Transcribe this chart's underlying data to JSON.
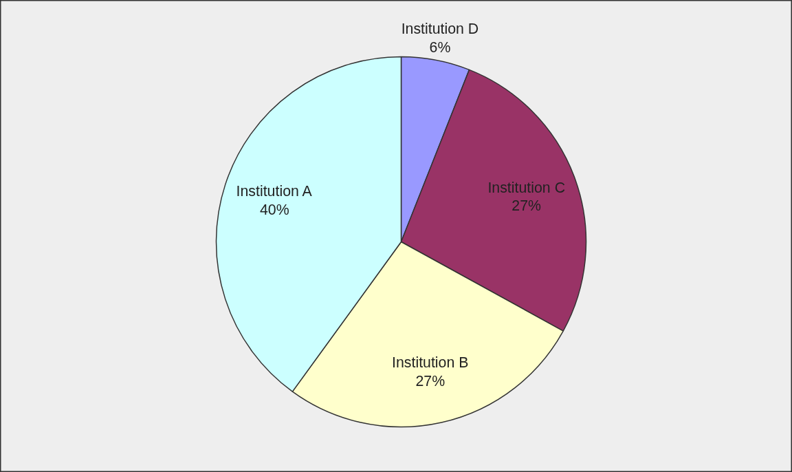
{
  "chart_data": {
    "type": "pie",
    "categories": [
      "Institution D",
      "Institution C",
      "Institution B",
      "Institution A"
    ],
    "values": [
      6,
      27,
      27,
      40
    ],
    "value_labels": [
      "6%",
      "27%",
      "27%",
      "40%"
    ],
    "colors": [
      "#9999ff",
      "#993366",
      "#ffffcc",
      "#ccffff"
    ]
  }
}
